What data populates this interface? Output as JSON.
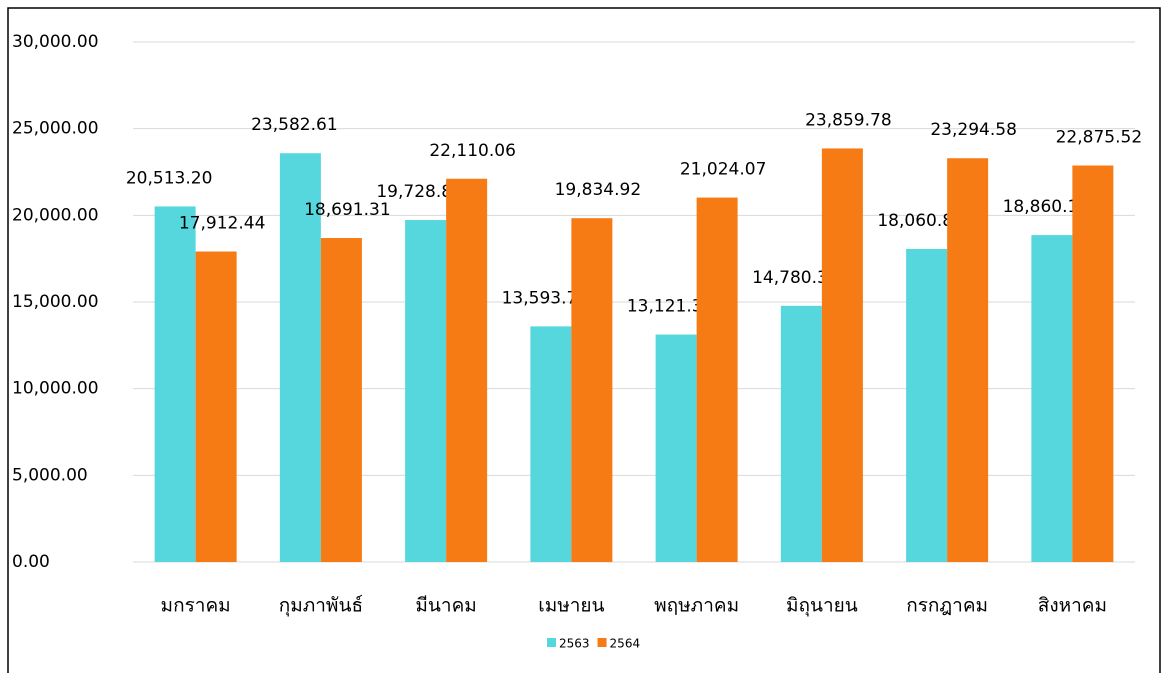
{
  "chart_data": {
    "type": "bar",
    "categories": [
      "มกราคม",
      "กุมภาพันธ์",
      "มีนาคม",
      "เมษายน",
      "พฤษภาคม",
      "มิถุนายน",
      "กรกฎาคม",
      "สิงหาคม"
    ],
    "series": [
      {
        "name": "2563",
        "color": "#56d6dd",
        "values": [
          20513.2,
          23582.61,
          19728.86,
          13593.71,
          13121.35,
          14780.33,
          18060.81,
          18860.13
        ],
        "value_labels": [
          "20,513.20",
          "23,582.61",
          "19,728.86",
          "13,593.71",
          "13,121.35",
          "14,780.33",
          "18,060.81",
          "18,860.13"
        ]
      },
      {
        "name": "2564",
        "color": "#f77b15",
        "values": [
          17912.44,
          18691.31,
          22110.06,
          19834.92,
          21024.07,
          23859.78,
          23294.58,
          22875.52
        ],
        "value_labels": [
          "17,912.44",
          "18,691.31",
          "22,110.06",
          "19,834.92",
          "21,024.07",
          "23,859.78",
          "23,294.58",
          "22,875.52"
        ]
      }
    ],
    "ylim": [
      0,
      30000
    ],
    "yticks": [
      {
        "value": 0,
        "label": "0.00"
      },
      {
        "value": 5000,
        "label": "5,000.00"
      },
      {
        "value": 10000,
        "label": "10,000.00"
      },
      {
        "value": 15000,
        "label": "15,000.00"
      },
      {
        "value": 20000,
        "label": "20,000.00"
      },
      {
        "value": 25000,
        "label": "25,000.00"
      },
      {
        "value": 30000,
        "label": "30,000.00"
      }
    ],
    "grid": true,
    "legend": "bottom"
  }
}
